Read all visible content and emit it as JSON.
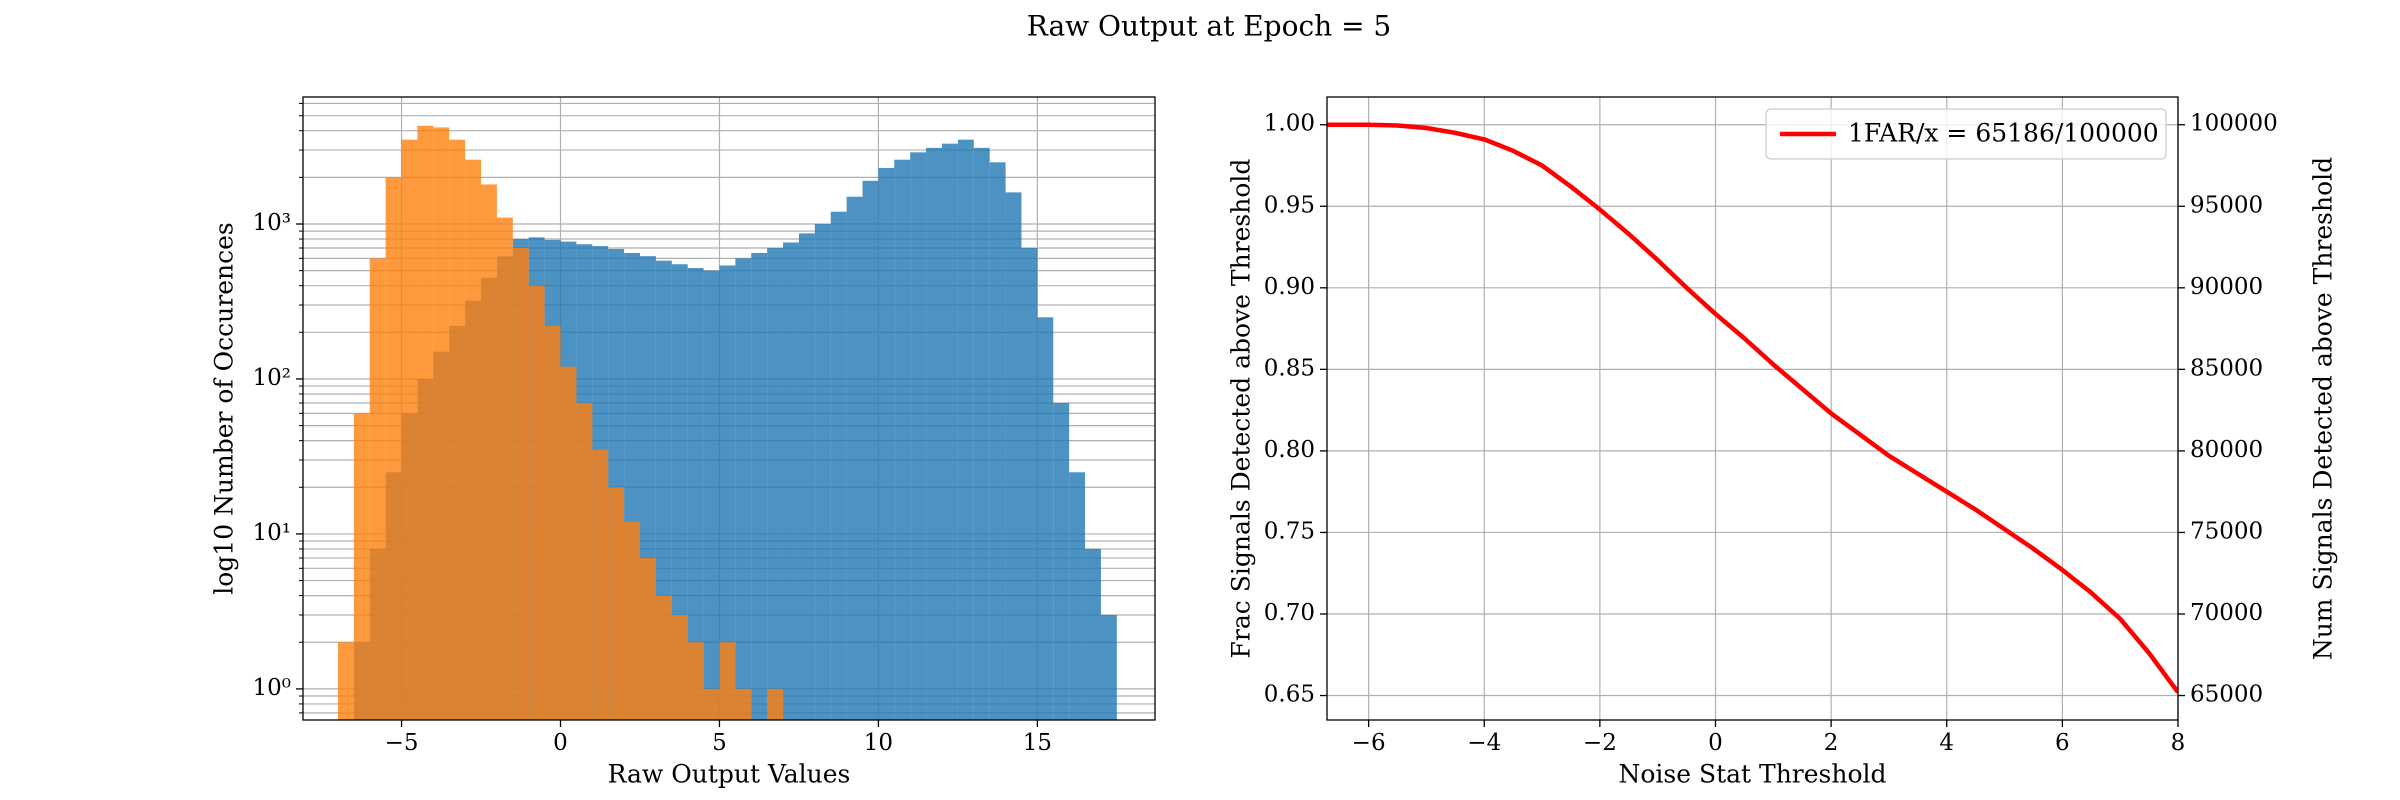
{
  "title": "Raw Output at Epoch = 5",
  "chart_data": [
    {
      "type": "histogram",
      "xlabel": "Raw Output Values",
      "ylabel": "log10 Number of Occurences",
      "bins": [
        -7,
        -6.5,
        -6,
        -5.5,
        -5,
        -4.5,
        -4,
        -3.5,
        -3,
        -2.5,
        -2,
        -1.5,
        -1,
        -0.5,
        0,
        0.5,
        1,
        1.5,
        2,
        2.5,
        3,
        3.5,
        4,
        4.5,
        5,
        5.5,
        6,
        6.5,
        7,
        7.5,
        8,
        8.5,
        9,
        9.5,
        10,
        10.5,
        11,
        11.5,
        12,
        12.5,
        13,
        13.5,
        14,
        14.5,
        15,
        15.5,
        16,
        16.5,
        17,
        17.5
      ],
      "series": [
        {
          "color": "#1f77b4",
          "values": [
            0,
            2,
            8,
            25,
            60,
            100,
            150,
            220,
            320,
            450,
            620,
            800,
            820,
            790,
            770,
            740,
            720,
            690,
            650,
            620,
            580,
            550,
            520,
            500,
            540,
            600,
            650,
            700,
            760,
            870,
            1000,
            1200,
            1500,
            1900,
            2300,
            2600,
            2900,
            3100,
            3300,
            3500,
            3100,
            2500,
            1600,
            700,
            250,
            70,
            25,
            8,
            3
          ]
        },
        {
          "color": "#ff7f0e",
          "values": [
            2,
            60,
            600,
            2000,
            3500,
            4300,
            4200,
            3500,
            2600,
            1800,
            1100,
            700,
            400,
            220,
            120,
            70,
            35,
            20,
            12,
            7,
            4,
            3,
            2,
            1,
            2,
            1,
            0,
            1,
            0,
            0,
            0,
            0,
            0,
            0,
            0,
            0,
            0,
            0,
            0,
            0,
            0,
            0,
            0,
            0,
            0,
            0,
            0,
            0,
            0
          ]
        }
      ],
      "opacity": 0.8,
      "log_y": true,
      "xlim": [
        -8.1,
        18.7
      ],
      "xticks": [
        {
          "value": -5,
          "label": "−5"
        },
        0,
        5,
        10,
        15
      ],
      "ylim": [
        0.63,
        6600
      ],
      "yticks": [
        {
          "value": 1,
          "label": "10⁰"
        },
        {
          "value": 10,
          "label": "10¹"
        },
        {
          "value": 100,
          "label": "10²"
        },
        {
          "value": 1000,
          "label": "10³"
        }
      ],
      "yticks_minor": [
        0.7,
        0.8,
        0.9,
        2,
        3,
        4,
        5,
        6,
        7,
        8,
        9,
        20,
        30,
        40,
        50,
        60,
        70,
        80,
        90,
        200,
        300,
        400,
        500,
        600,
        700,
        800,
        900,
        2000,
        3000,
        4000,
        5000,
        6000
      ],
      "grid": true
    },
    {
      "type": "line",
      "xlabel": "Noise Stat Threshold",
      "ylabel": "Frac Signals Detected above Threshold",
      "y2label": "Num Signals Detected above Threshold",
      "x": [
        -6.72,
        -6,
        -5.5,
        -5,
        -4.5,
        -4,
        -3.5,
        -3,
        -2.5,
        -2,
        -1.5,
        -1,
        -0.5,
        0,
        0.5,
        1,
        1.5,
        2,
        2.5,
        3,
        3.5,
        4,
        4.5,
        5,
        5.5,
        6,
        6.5,
        7,
        7.5,
        8
      ],
      "series": [
        {
          "name": "1FAR/x = 65186/100000",
          "color": "#ff0000",
          "values": [
            1.0,
            1.0,
            0.9995,
            0.998,
            0.995,
            0.991,
            0.984,
            0.975,
            0.962,
            0.948,
            0.933,
            0.917,
            0.9,
            0.884,
            0.869,
            0.853,
            0.838,
            0.823,
            0.81,
            0.797,
            0.786,
            0.775,
            0.764,
            0.752,
            0.74,
            0.727,
            0.713,
            0.697,
            0.676,
            0.652
          ]
        }
      ],
      "xlim": [
        -6.72,
        8
      ],
      "xticks": [
        {
          "value": -6,
          "label": "−6"
        },
        {
          "value": -4,
          "label": "−4"
        },
        {
          "value": -2,
          "label": "−2"
        },
        0,
        2,
        4,
        6,
        8
      ],
      "ylim": [
        0.635,
        1.017
      ],
      "yticks": [
        {
          "value": 0.65,
          "label": "0.65"
        },
        {
          "value": 0.7,
          "label": "0.70"
        },
        0.75,
        {
          "value": 0.8,
          "label": "0.80"
        },
        0.85,
        {
          "value": 0.9,
          "label": "0.90"
        },
        0.95,
        {
          "value": 1,
          "label": "1.00"
        }
      ],
      "y2lim": [
        63500,
        101700
      ],
      "y2ticks": [
        65000,
        70000,
        75000,
        80000,
        85000,
        90000,
        95000,
        100000
      ],
      "grid": true,
      "legend": "upper right"
    }
  ]
}
